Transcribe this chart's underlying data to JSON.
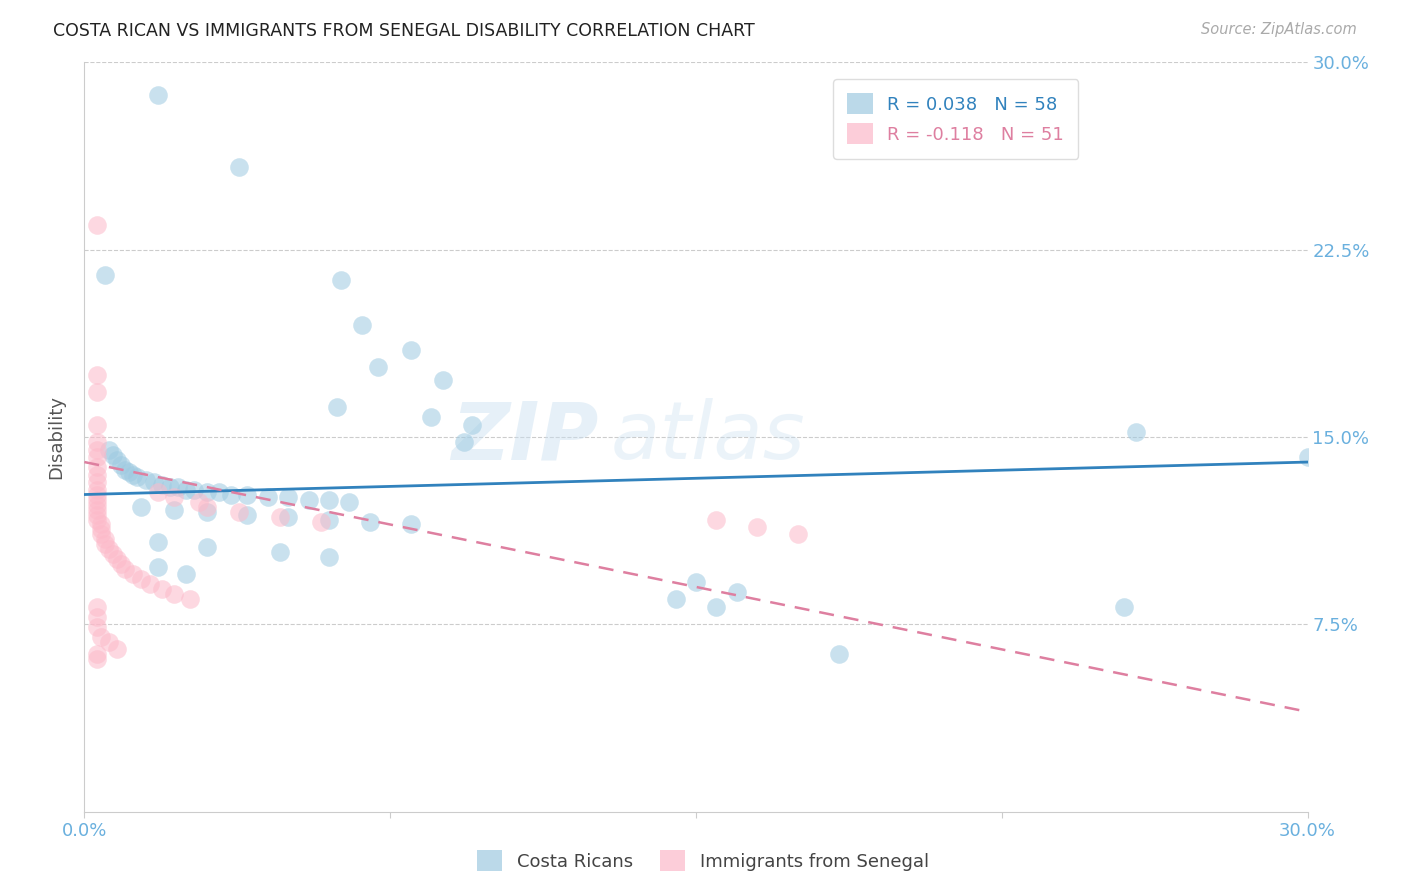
{
  "title": "COSTA RICAN VS IMMIGRANTS FROM SENEGAL DISABILITY CORRELATION CHART",
  "source": "Source: ZipAtlas.com",
  "ylabel": "Disability",
  "watermark_line1": "ZIP",
  "watermark_line2": "atlas",
  "xmin": 0.0,
  "xmax": 0.3,
  "ymin": 0.0,
  "ymax": 0.3,
  "yticks": [
    0.075,
    0.15,
    0.225,
    0.3
  ],
  "ytick_labels": [
    "7.5%",
    "15.0%",
    "22.5%",
    "30.0%"
  ],
  "cr_R": 0.038,
  "cr_N": 58,
  "sen_R": -0.118,
  "sen_N": 51,
  "cr_color": "#9ecae1",
  "sen_color": "#fcb9c9",
  "cr_line_color": "#3182bd",
  "sen_line_color": "#de7fa0",
  "axis_label_color": "#6ab0de",
  "tick_color": "#6ab0de",
  "cr_points": [
    [
      0.018,
      0.287
    ],
    [
      0.038,
      0.258
    ],
    [
      0.005,
      0.215
    ],
    [
      0.063,
      0.213
    ],
    [
      0.068,
      0.195
    ],
    [
      0.08,
      0.185
    ],
    [
      0.072,
      0.178
    ],
    [
      0.088,
      0.173
    ],
    [
      0.062,
      0.162
    ],
    [
      0.085,
      0.158
    ],
    [
      0.095,
      0.155
    ],
    [
      0.093,
      0.148
    ],
    [
      0.006,
      0.145
    ],
    [
      0.007,
      0.143
    ],
    [
      0.008,
      0.141
    ],
    [
      0.009,
      0.139
    ],
    [
      0.01,
      0.137
    ],
    [
      0.011,
      0.136
    ],
    [
      0.012,
      0.135
    ],
    [
      0.013,
      0.134
    ],
    [
      0.015,
      0.133
    ],
    [
      0.017,
      0.132
    ],
    [
      0.019,
      0.131
    ],
    [
      0.021,
      0.13
    ],
    [
      0.023,
      0.13
    ],
    [
      0.025,
      0.129
    ],
    [
      0.027,
      0.129
    ],
    [
      0.03,
      0.128
    ],
    [
      0.033,
      0.128
    ],
    [
      0.036,
      0.127
    ],
    [
      0.04,
      0.127
    ],
    [
      0.045,
      0.126
    ],
    [
      0.05,
      0.126
    ],
    [
      0.055,
      0.125
    ],
    [
      0.06,
      0.125
    ],
    [
      0.065,
      0.124
    ],
    [
      0.014,
      0.122
    ],
    [
      0.022,
      0.121
    ],
    [
      0.03,
      0.12
    ],
    [
      0.04,
      0.119
    ],
    [
      0.05,
      0.118
    ],
    [
      0.06,
      0.117
    ],
    [
      0.07,
      0.116
    ],
    [
      0.08,
      0.115
    ],
    [
      0.018,
      0.108
    ],
    [
      0.03,
      0.106
    ],
    [
      0.048,
      0.104
    ],
    [
      0.06,
      0.102
    ],
    [
      0.018,
      0.098
    ],
    [
      0.025,
      0.095
    ],
    [
      0.15,
      0.092
    ],
    [
      0.16,
      0.088
    ],
    [
      0.145,
      0.085
    ],
    [
      0.155,
      0.082
    ],
    [
      0.258,
      0.152
    ],
    [
      0.3,
      0.142
    ],
    [
      0.185,
      0.063
    ],
    [
      0.255,
      0.082
    ]
  ],
  "sen_points": [
    [
      0.003,
      0.235
    ],
    [
      0.003,
      0.175
    ],
    [
      0.003,
      0.168
    ],
    [
      0.003,
      0.155
    ],
    [
      0.003,
      0.148
    ],
    [
      0.003,
      0.145
    ],
    [
      0.003,
      0.142
    ],
    [
      0.003,
      0.138
    ],
    [
      0.003,
      0.135
    ],
    [
      0.003,
      0.132
    ],
    [
      0.003,
      0.129
    ],
    [
      0.003,
      0.127
    ],
    [
      0.003,
      0.125
    ],
    [
      0.003,
      0.123
    ],
    [
      0.003,
      0.121
    ],
    [
      0.003,
      0.119
    ],
    [
      0.003,
      0.117
    ],
    [
      0.004,
      0.115
    ],
    [
      0.004,
      0.113
    ],
    [
      0.004,
      0.111
    ],
    [
      0.005,
      0.109
    ],
    [
      0.005,
      0.107
    ],
    [
      0.006,
      0.105
    ],
    [
      0.007,
      0.103
    ],
    [
      0.008,
      0.101
    ],
    [
      0.009,
      0.099
    ],
    [
      0.01,
      0.097
    ],
    [
      0.012,
      0.095
    ],
    [
      0.014,
      0.093
    ],
    [
      0.016,
      0.091
    ],
    [
      0.019,
      0.089
    ],
    [
      0.022,
      0.087
    ],
    [
      0.026,
      0.085
    ],
    [
      0.003,
      0.082
    ],
    [
      0.003,
      0.078
    ],
    [
      0.003,
      0.074
    ],
    [
      0.004,
      0.07
    ],
    [
      0.006,
      0.068
    ],
    [
      0.008,
      0.065
    ],
    [
      0.003,
      0.063
    ],
    [
      0.003,
      0.061
    ],
    [
      0.018,
      0.128
    ],
    [
      0.022,
      0.126
    ],
    [
      0.028,
      0.124
    ],
    [
      0.03,
      0.122
    ],
    [
      0.038,
      0.12
    ],
    [
      0.048,
      0.118
    ],
    [
      0.058,
      0.116
    ],
    [
      0.155,
      0.117
    ],
    [
      0.165,
      0.114
    ],
    [
      0.175,
      0.111
    ]
  ],
  "cr_trendline": [
    0.0,
    0.3,
    0.127,
    0.14
  ],
  "sen_trendline": [
    0.0,
    0.3,
    0.14,
    0.04
  ]
}
